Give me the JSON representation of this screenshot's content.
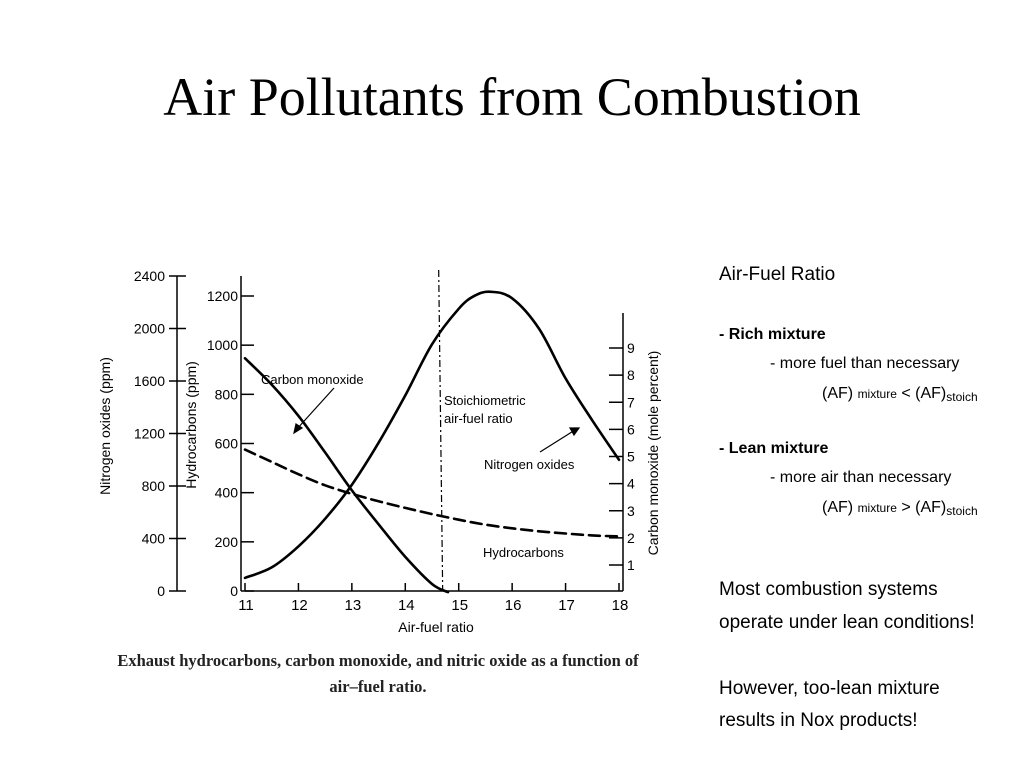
{
  "slide": {
    "title": "Air Pollutants from Combustion",
    "caption_line1": "Exhaust hydrocarbons, carbon monoxide, and nitric oxide as a function of",
    "caption_line2": "air–fuel ratio."
  },
  "notes": {
    "heading": "Air-Fuel Ratio",
    "rich_label": "- Rich mixture",
    "rich_desc": "- more fuel than necessary",
    "lean_label": "- Lean mixture",
    "lean_desc": "- more air than necessary",
    "af": "(AF)",
    "mixture": "mixture",
    "stoich": "stoich",
    "lt": "<",
    "gt": ">",
    "conclusion_line1": "Most combustion systems",
    "conclusion_line2": "operate under lean conditions!",
    "warning_line1": "However, too-lean mixture",
    "warning_line2": "results in  Nox products!"
  },
  "chart_data": {
    "type": "line",
    "xlabel": "Air-fuel ratio",
    "x_ticks": [
      11,
      12,
      13,
      14,
      15,
      16,
      17,
      18
    ],
    "xlim": [
      11,
      18
    ],
    "axes": {
      "nox": {
        "label": "Nitrogen oxides (ppm)",
        "ylim": [
          0,
          2400
        ],
        "ticks": [
          0,
          400,
          800,
          1200,
          1600,
          2000,
          2400
        ]
      },
      "hc": {
        "label": "Hydrocarbons (ppm)",
        "ylim": [
          0,
          1200
        ],
        "ticks": [
          0,
          200,
          400,
          600,
          800,
          1000,
          1200
        ]
      },
      "co": {
        "label": "Carbon monoxide (mole percent)",
        "ticks": [
          1,
          2,
          3,
          4,
          5,
          6,
          7,
          8,
          9
        ]
      }
    },
    "stoichiometric": {
      "x": 14.7,
      "label_line1": "Stoichiometric",
      "label_line2": "air-fuel ratio"
    },
    "series": [
      {
        "name": "Carbon monoxide",
        "axis": "co",
        "style": "solid",
        "x": [
          11,
          11.5,
          12,
          12.5,
          13,
          13.5,
          14,
          14.5,
          14.8
        ],
        "y": [
          8.62,
          7.65,
          6.5,
          5.15,
          3.75,
          2.5,
          1.3,
          0.3,
          0
        ]
      },
      {
        "name": "Hydrocarbons",
        "axis": "hc",
        "style": "dashed",
        "x": [
          11,
          11.5,
          12,
          12.5,
          13,
          13.5,
          14,
          14.5,
          15,
          15.5,
          16,
          16.5,
          17,
          17.5,
          18
        ],
        "y": [
          575,
          525,
          475,
          430,
          395,
          365,
          338,
          313,
          290,
          270,
          255,
          243,
          234,
          226,
          222
        ]
      },
      {
        "name": "Nitrogen oxides",
        "axis": "nox",
        "style": "solid",
        "x": [
          11,
          11.5,
          12,
          12.5,
          13,
          13.5,
          14,
          14.5,
          15,
          15.3,
          15.6,
          16,
          16.5,
          17,
          17.5,
          18
        ],
        "y": [
          100,
          180,
          340,
          550,
          810,
          1130,
          1490,
          1880,
          2150,
          2250,
          2280,
          2230,
          2000,
          1620,
          1300,
          1000
        ]
      }
    ]
  }
}
